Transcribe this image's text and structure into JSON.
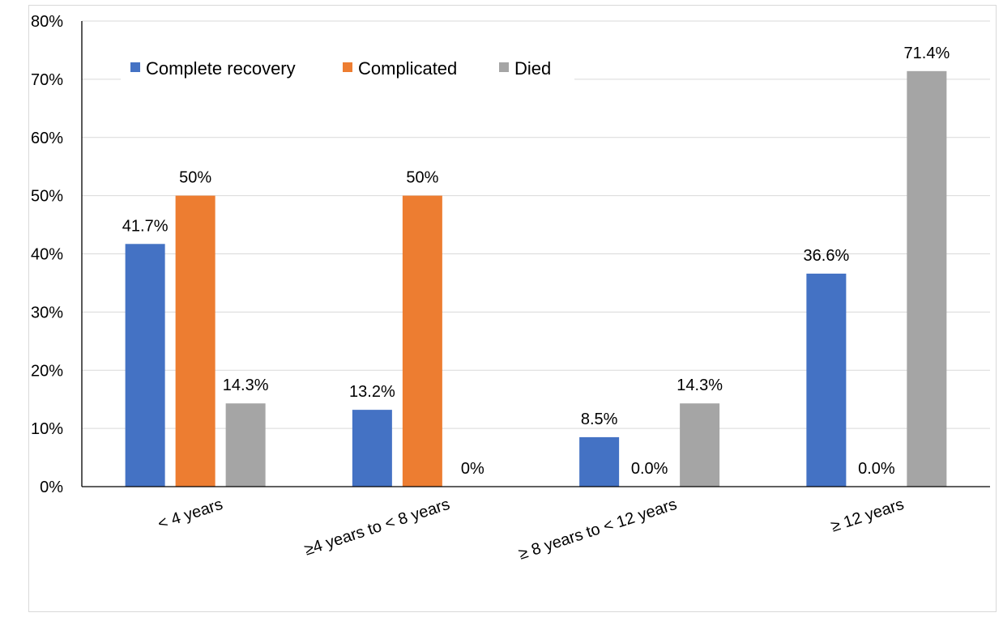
{
  "chart_data": {
    "type": "bar",
    "title": "",
    "xlabel": "",
    "ylabel": "",
    "categories": [
      "< 4 years",
      "≥4 years to < 8 years",
      "≥ 8 years to < 12 years",
      "≥ 12 years"
    ],
    "series": [
      {
        "name": "Complete recovery",
        "color": "#4472c4",
        "values": [
          41.7,
          13.2,
          8.5,
          36.6
        ],
        "labels": [
          "41.7%",
          "13.2%",
          "8.5%",
          "36.6%"
        ]
      },
      {
        "name": "Complicated",
        "color": "#ed7d31",
        "values": [
          50,
          50,
          0,
          0
        ],
        "labels": [
          "50%",
          "50%",
          "0.0%",
          "0.0%"
        ]
      },
      {
        "name": "Died",
        "color": "#a5a5a5",
        "values": [
          14.3,
          0,
          14.3,
          71.4
        ],
        "labels": [
          "14.3%",
          "0%",
          "14.3%",
          "71.4%"
        ]
      }
    ],
    "ylim": [
      0,
      80
    ],
    "yticks": [
      "0%",
      "10%",
      "20%",
      "30%",
      "40%",
      "50%",
      "60%",
      "70%",
      "80%"
    ],
    "grid": true,
    "legend_position": "top-left"
  }
}
